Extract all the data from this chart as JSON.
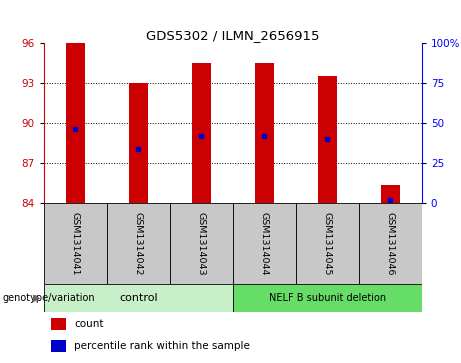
{
  "title": "GDS5302 / ILMN_2656915",
  "samples": [
    "GSM1314041",
    "GSM1314042",
    "GSM1314043",
    "GSM1314044",
    "GSM1314045",
    "GSM1314046"
  ],
  "bar_heights": [
    96.0,
    93.0,
    94.5,
    94.5,
    93.5,
    85.3
  ],
  "blue_markers": [
    89.5,
    88.0,
    89.0,
    89.0,
    88.8,
    84.2
  ],
  "ymin": 84,
  "ymax": 96,
  "yticks_left": [
    84,
    87,
    90,
    93,
    96
  ],
  "yticks_right": [
    0,
    25,
    50,
    75,
    100
  ],
  "yticks_right_labels": [
    "0",
    "25",
    "50",
    "75",
    "100%"
  ],
  "bar_color": "#cc0000",
  "marker_color": "#0000cc",
  "bg_label_row": "#c8c8c8",
  "bar_width": 0.3,
  "group1_label": "control",
  "group1_color": "#c8f0c8",
  "group2_label": "NELF B subunit deletion",
  "group2_color": "#66dd66",
  "genotype_label": "genotype/variation",
  "legend_count": "count",
  "legend_percentile": "percentile rank within the sample",
  "grid_dotted_at": [
    87,
    90,
    93
  ]
}
